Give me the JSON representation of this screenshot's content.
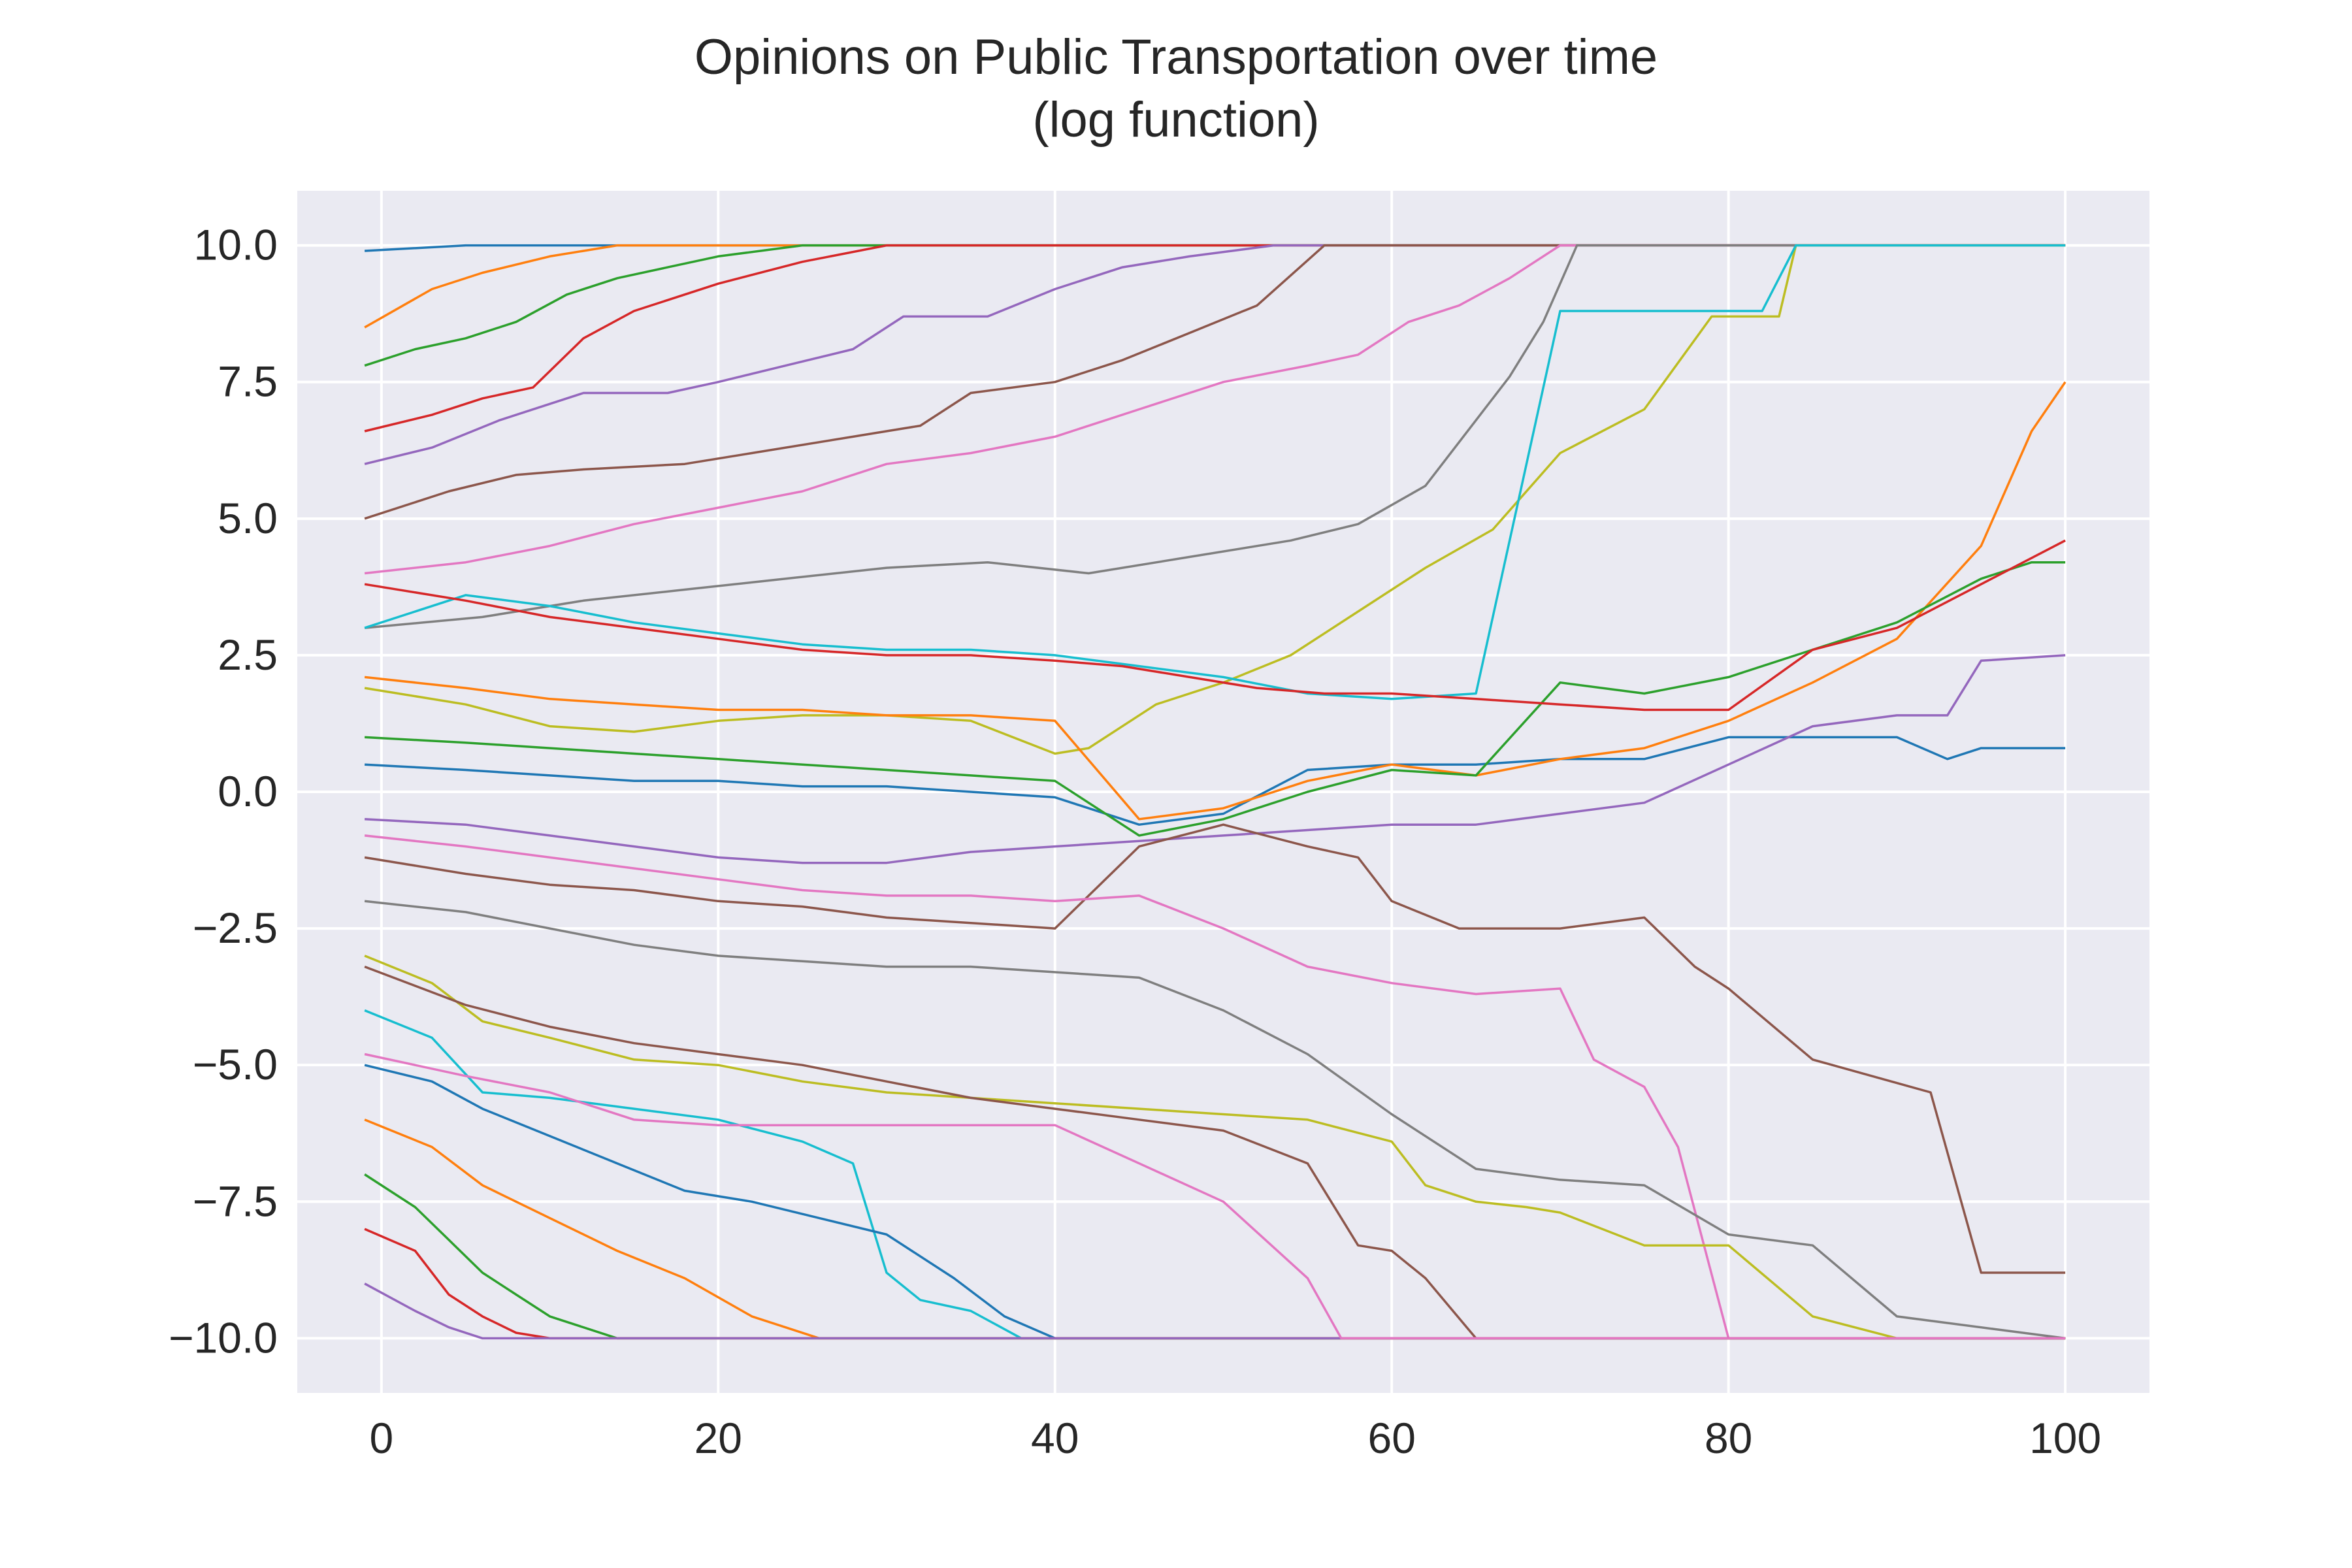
{
  "chart_data": {
    "type": "line",
    "title": [
      "Opinions on Public Transportation over time",
      "(log function)"
    ],
    "xlabel": "",
    "ylabel": "",
    "xlim": [
      -5,
      105
    ],
    "ylim": [
      -11,
      11
    ],
    "xticks": [
      0,
      20,
      40,
      60,
      80,
      100
    ],
    "xtick_labels": [
      "0",
      "20",
      "40",
      "60",
      "80",
      "100"
    ],
    "yticks": [
      10.0,
      7.5,
      5.0,
      2.5,
      0.0,
      -2.5,
      -5.0,
      -7.5,
      -10.0
    ],
    "ytick_labels": [
      "10.0",
      "7.5",
      "5.0",
      "2.5",
      "0.0",
      "−2.5",
      "−5.0",
      "−7.5",
      "−10.0"
    ],
    "grid": true,
    "style": "seaborn-darkgrid",
    "colors": [
      "#1f77b4",
      "#ff7f0e",
      "#2ca02c",
      "#d62728",
      "#9467bd",
      "#8c564b",
      "#e377c2",
      "#7f7f7f",
      "#bcbd22",
      "#17becf"
    ],
    "series": [
      {
        "x": [
          -1,
          5,
          10,
          15,
          20,
          25,
          30,
          40,
          50,
          60,
          70,
          80,
          100
        ],
        "y": [
          9.9,
          10,
          10,
          10,
          10,
          10,
          10,
          10,
          10,
          10,
          10,
          10,
          10
        ]
      },
      {
        "x": [
          -1,
          3,
          6,
          10,
          14,
          20,
          28,
          40,
          100
        ],
        "y": [
          8.5,
          9.2,
          9.5,
          9.8,
          10,
          10,
          10,
          10,
          10
        ]
      },
      {
        "x": [
          -1,
          2,
          5,
          8,
          11,
          14,
          17,
          20,
          25,
          100
        ],
        "y": [
          7.8,
          8.1,
          8.3,
          8.6,
          9.1,
          9.4,
          9.6,
          9.8,
          10,
          10
        ]
      },
      {
        "x": [
          -1,
          3,
          6,
          9,
          12,
          15,
          20,
          25,
          30,
          100
        ],
        "y": [
          6.6,
          6.9,
          7.2,
          7.4,
          8.3,
          8.8,
          9.3,
          9.7,
          10,
          10
        ]
      },
      {
        "x": [
          -1,
          3,
          7,
          12,
          17,
          20,
          24,
          28,
          31,
          36,
          40,
          44,
          48,
          53,
          100
        ],
        "y": [
          6.0,
          6.3,
          6.8,
          7.3,
          7.3,
          7.5,
          7.8,
          8.1,
          8.7,
          8.7,
          9.2,
          9.6,
          9.8,
          10,
          10
        ]
      },
      {
        "x": [
          -1,
          4,
          8,
          12,
          18,
          22,
          28,
          32,
          35,
          40,
          44,
          48,
          52,
          56,
          100
        ],
        "y": [
          5.0,
          5.5,
          5.8,
          5.9,
          6.0,
          6.2,
          6.5,
          6.7,
          7.3,
          7.5,
          7.9,
          8.4,
          8.9,
          10,
          10
        ]
      },
      {
        "x": [
          -1,
          5,
          10,
          15,
          20,
          25,
          30,
          35,
          40,
          45,
          50,
          55,
          58,
          61,
          64,
          67,
          70,
          100
        ],
        "y": [
          4.0,
          4.2,
          4.5,
          4.9,
          5.2,
          5.5,
          6.0,
          6.2,
          6.5,
          7.0,
          7.5,
          7.8,
          8.0,
          8.6,
          8.9,
          9.4,
          10,
          10
        ]
      },
      {
        "x": [
          -1,
          6,
          12,
          18,
          24,
          30,
          36,
          42,
          48,
          54,
          58,
          62,
          65,
          67,
          69,
          71,
          100
        ],
        "y": [
          3.0,
          3.2,
          3.5,
          3.7,
          3.9,
          4.1,
          4.2,
          4.0,
          4.3,
          4.6,
          4.9,
          5.6,
          6.8,
          7.6,
          8.6,
          10,
          10
        ]
      },
      {
        "x": [
          -1,
          5,
          10,
          15,
          20,
          25,
          30,
          35,
          40,
          42,
          46,
          50,
          54,
          58,
          62,
          66,
          70,
          75,
          79,
          83,
          84,
          100
        ],
        "y": [
          1.9,
          1.6,
          1.2,
          1.1,
          1.3,
          1.4,
          1.4,
          1.3,
          0.7,
          0.8,
          1.6,
          2.0,
          2.5,
          3.3,
          4.1,
          4.8,
          6.2,
          7.0,
          8.7,
          8.7,
          10,
          10
        ]
      },
      {
        "x": [
          -1,
          5,
          10,
          15,
          20,
          25,
          30,
          35,
          40,
          45,
          50,
          55,
          60,
          65,
          70,
          75,
          80,
          82,
          84,
          100
        ],
        "y": [
          3.0,
          3.6,
          3.4,
          3.1,
          2.9,
          2.7,
          2.6,
          2.6,
          2.5,
          2.3,
          2.1,
          1.8,
          1.7,
          1.8,
          8.8,
          8.8,
          8.8,
          8.8,
          10,
          10
        ]
      },
      {
        "x": [
          -1,
          5,
          10,
          15,
          20,
          25,
          30,
          35,
          40,
          45,
          50,
          55,
          60,
          65,
          70,
          75,
          80,
          85,
          90,
          93,
          95,
          100
        ],
        "y": [
          0.5,
          0.4,
          0.3,
          0.2,
          0.2,
          0.1,
          0.1,
          0.0,
          -0.1,
          -0.6,
          -0.4,
          0.4,
          0.5,
          0.5,
          0.6,
          0.6,
          1.0,
          1.0,
          1.0,
          0.6,
          0.8,
          0.8
        ]
      },
      {
        "x": [
          -1,
          5,
          10,
          15,
          20,
          25,
          30,
          35,
          40,
          45,
          50,
          55,
          60,
          65,
          70,
          75,
          80,
          85,
          90,
          95,
          98,
          100
        ],
        "y": [
          2.1,
          1.9,
          1.7,
          1.6,
          1.5,
          1.5,
          1.4,
          1.4,
          1.3,
          -0.5,
          -0.3,
          0.2,
          0.5,
          0.3,
          0.6,
          0.8,
          1.3,
          2.0,
          2.8,
          4.5,
          6.6,
          7.5
        ]
      },
      {
        "x": [
          -1,
          5,
          10,
          15,
          20,
          25,
          30,
          35,
          40,
          45,
          50,
          55,
          60,
          65,
          70,
          75,
          80,
          85,
          90,
          95,
          98,
          100
        ],
        "y": [
          1.0,
          0.9,
          0.8,
          0.7,
          0.6,
          0.5,
          0.4,
          0.3,
          0.2,
          -0.8,
          -0.5,
          0.0,
          0.4,
          0.3,
          2.0,
          1.8,
          2.1,
          2.6,
          3.1,
          3.9,
          4.2,
          4.2
        ]
      },
      {
        "x": [
          -1,
          5,
          10,
          15,
          20,
          25,
          30,
          35,
          40,
          44,
          48,
          52,
          56,
          60,
          65,
          70,
          75,
          80,
          85,
          90,
          95,
          100
        ],
        "y": [
          3.8,
          3.5,
          3.2,
          3.0,
          2.8,
          2.6,
          2.5,
          2.5,
          2.4,
          2.3,
          2.1,
          1.9,
          1.8,
          1.8,
          1.7,
          1.6,
          1.5,
          1.5,
          2.6,
          3.0,
          3.8,
          4.6
        ]
      },
      {
        "x": [
          -1,
          5,
          10,
          15,
          20,
          25,
          30,
          35,
          40,
          45,
          50,
          55,
          60,
          65,
          70,
          75,
          80,
          85,
          90,
          93,
          95,
          100
        ],
        "y": [
          -0.5,
          -0.6,
          -0.8,
          -1.0,
          -1.2,
          -1.3,
          -1.3,
          -1.1,
          -1.0,
          -0.9,
          -0.8,
          -0.7,
          -0.6,
          -0.6,
          -0.4,
          -0.2,
          0.5,
          1.2,
          1.4,
          1.4,
          2.4,
          2.5
        ]
      },
      {
        "x": [
          -1,
          5,
          10,
          15,
          20,
          25,
          30,
          35,
          40,
          45,
          50,
          55,
          58,
          60,
          64,
          70,
          75,
          78,
          80,
          85,
          92,
          95,
          100
        ],
        "y": [
          -1.2,
          -1.5,
          -1.7,
          -1.8,
          -2.0,
          -2.1,
          -2.3,
          -2.4,
          -2.5,
          -1.0,
          -0.6,
          -1.0,
          -1.2,
          -2.0,
          -2.5,
          -2.5,
          -2.3,
          -3.2,
          -3.6,
          -4.9,
          -5.5,
          -8.8,
          -8.8
        ]
      },
      {
        "x": [
          -1,
          5,
          10,
          15,
          20,
          25,
          30,
          35,
          40,
          45,
          50,
          55,
          60,
          65,
          70,
          72,
          75,
          77,
          80,
          100
        ],
        "y": [
          -0.8,
          -1.0,
          -1.2,
          -1.4,
          -1.6,
          -1.8,
          -1.9,
          -1.9,
          -2.0,
          -1.9,
          -2.5,
          -3.2,
          -3.5,
          -3.7,
          -3.6,
          -4.9,
          -5.4,
          -6.5,
          -10,
          -10
        ]
      },
      {
        "x": [
          -1,
          5,
          10,
          15,
          20,
          25,
          30,
          35,
          40,
          45,
          50,
          55,
          60,
          65,
          70,
          75,
          80,
          85,
          90,
          100
        ],
        "y": [
          -2.0,
          -2.2,
          -2.5,
          -2.8,
          -3.0,
          -3.1,
          -3.2,
          -3.2,
          -3.3,
          -3.4,
          -4.0,
          -4.8,
          -5.9,
          -6.9,
          -7.1,
          -7.2,
          -8.1,
          -8.3,
          -9.6,
          -10
        ]
      },
      {
        "x": [
          -1,
          3,
          6,
          10,
          15,
          20,
          25,
          30,
          35,
          40,
          45,
          50,
          55,
          60,
          62,
          65,
          68,
          70,
          75,
          80,
          85,
          90,
          100
        ],
        "y": [
          -3.0,
          -3.5,
          -4.2,
          -4.5,
          -4.9,
          -5.0,
          -5.3,
          -5.5,
          -5.6,
          -5.7,
          -5.8,
          -5.9,
          -6.0,
          -6.4,
          -7.2,
          -7.5,
          -7.6,
          -7.7,
          -8.3,
          -8.3,
          -9.6,
          -10,
          -10
        ]
      },
      {
        "x": [
          -1,
          3,
          6,
          10,
          15,
          20,
          25,
          28,
          30,
          32,
          35,
          38,
          100
        ],
        "y": [
          -4.0,
          -4.5,
          -5.5,
          -5.6,
          -5.8,
          -6.0,
          -6.4,
          -6.8,
          -8.8,
          -9.3,
          -9.5,
          -10,
          -10
        ]
      },
      {
        "x": [
          -1,
          3,
          6,
          10,
          14,
          18,
          22,
          26,
          30,
          34,
          37,
          40,
          100
        ],
        "y": [
          -5.0,
          -5.3,
          -5.8,
          -6.3,
          -6.8,
          -7.3,
          -7.5,
          -7.8,
          -8.1,
          -8.9,
          -9.6,
          -10,
          -10
        ]
      },
      {
        "x": [
          -1,
          3,
          6,
          10,
          14,
          18,
          22,
          26,
          28,
          100
        ],
        "y": [
          -6.0,
          -6.5,
          -7.2,
          -7.8,
          -8.4,
          -8.9,
          -9.6,
          -10,
          -10,
          -10
        ]
      },
      {
        "x": [
          -1,
          2,
          4,
          6,
          8,
          10,
          14,
          18,
          20,
          100
        ],
        "y": [
          -7.0,
          -7.6,
          -8.2,
          -8.8,
          -9.2,
          -9.6,
          -10,
          -10,
          -10,
          -10
        ]
      },
      {
        "x": [
          -1,
          2,
          4,
          6,
          8,
          10,
          100
        ],
        "y": [
          -8.0,
          -8.4,
          -9.2,
          -9.6,
          -9.9,
          -10,
          -10
        ]
      },
      {
        "x": [
          -1,
          2,
          4,
          6,
          8,
          100
        ],
        "y": [
          -9.0,
          -9.5,
          -9.8,
          -10,
          -10,
          -10
        ]
      },
      {
        "x": [
          -1,
          5,
          10,
          15,
          20,
          25,
          30,
          35,
          40,
          45,
          50,
          55,
          58,
          60,
          62,
          65,
          100
        ],
        "y": [
          -3.2,
          -3.9,
          -4.3,
          -4.6,
          -4.8,
          -5.0,
          -5.3,
          -5.6,
          -5.8,
          -6.0,
          -6.2,
          -6.8,
          -8.3,
          -8.4,
          -8.9,
          -10,
          -10
        ]
      },
      {
        "x": [
          -1,
          5,
          10,
          15,
          20,
          25,
          30,
          35,
          40,
          45,
          50,
          55,
          57,
          100
        ],
        "y": [
          -4.8,
          -5.2,
          -5.5,
          -6.0,
          -6.1,
          -6.1,
          -6.1,
          -6.1,
          -6.1,
          -6.8,
          -7.5,
          -8.9,
          -10,
          -10
        ]
      }
    ]
  }
}
